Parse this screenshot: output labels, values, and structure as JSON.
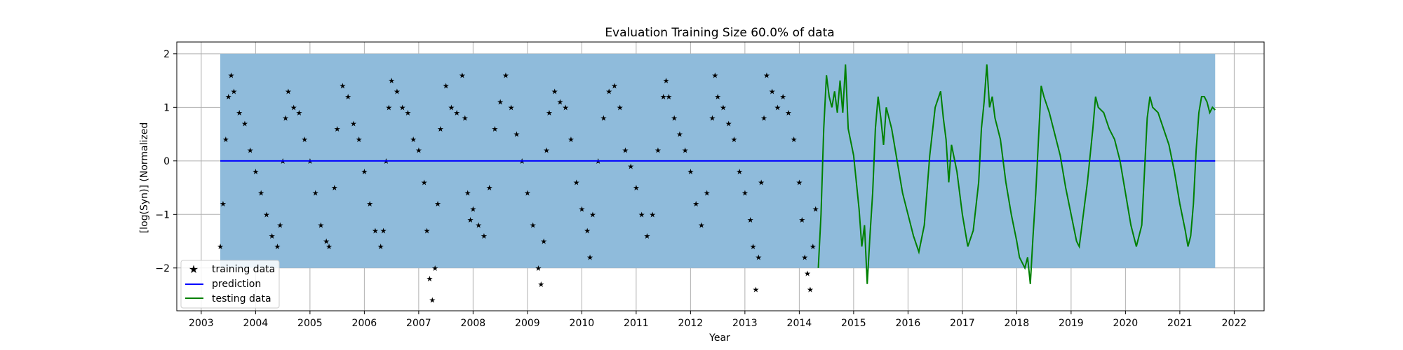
{
  "chart_data": {
    "type": "line",
    "title": "Evaluation Training Size 60.0% of data",
    "xlabel": "Year",
    "ylabel": "[log(Syn)] (Normalized",
    "xlim": [
      2002.55,
      2022.55
    ],
    "ylim": [
      -2.8,
      2.22
    ],
    "xticks": [
      2003,
      2004,
      2005,
      2006,
      2007,
      2008,
      2009,
      2010,
      2011,
      2012,
      2013,
      2014,
      2015,
      2016,
      2017,
      2018,
      2019,
      2020,
      2021,
      2022
    ],
    "yticks": [
      -2,
      -1,
      0,
      1,
      2
    ],
    "grid": true,
    "legend_position": "lower-left",
    "band": {
      "x_start": 2003.35,
      "x_end": 2021.65,
      "y_low": -2.0,
      "y_high": 2.0,
      "color": "#8fbbdb"
    },
    "series": [
      {
        "name": "training data",
        "marker": "star",
        "color": "#000000",
        "points": [
          [
            2003.35,
            -1.6
          ],
          [
            2003.4,
            -0.8
          ],
          [
            2003.45,
            0.4
          ],
          [
            2003.5,
            1.2
          ],
          [
            2003.55,
            1.6
          ],
          [
            2003.6,
            1.3
          ],
          [
            2003.7,
            0.9
          ],
          [
            2003.8,
            0.7
          ],
          [
            2003.9,
            0.2
          ],
          [
            2004.0,
            -0.2
          ],
          [
            2004.1,
            -0.6
          ],
          [
            2004.2,
            -1.0
          ],
          [
            2004.3,
            -1.4
          ],
          [
            2004.4,
            -1.6
          ],
          [
            2004.45,
            -1.2
          ],
          [
            2004.5,
            0.0
          ],
          [
            2004.55,
            0.8
          ],
          [
            2004.6,
            1.3
          ],
          [
            2004.7,
            1.0
          ],
          [
            2004.8,
            0.9
          ],
          [
            2004.9,
            0.4
          ],
          [
            2005.0,
            0.0
          ],
          [
            2005.1,
            -0.6
          ],
          [
            2005.2,
            -1.2
          ],
          [
            2005.3,
            -1.5
          ],
          [
            2005.35,
            -1.6
          ],
          [
            2005.45,
            -0.5
          ],
          [
            2005.5,
            0.6
          ],
          [
            2005.6,
            1.4
          ],
          [
            2005.7,
            1.2
          ],
          [
            2005.8,
            0.7
          ],
          [
            2005.9,
            0.4
          ],
          [
            2006.0,
            -0.2
          ],
          [
            2006.1,
            -0.8
          ],
          [
            2006.2,
            -1.3
          ],
          [
            2006.3,
            -1.6
          ],
          [
            2006.35,
            -1.3
          ],
          [
            2006.4,
            0.0
          ],
          [
            2006.45,
            1.0
          ],
          [
            2006.5,
            1.5
          ],
          [
            2006.6,
            1.3
          ],
          [
            2006.7,
            1.0
          ],
          [
            2006.8,
            0.9
          ],
          [
            2006.9,
            0.4
          ],
          [
            2007.0,
            0.2
          ],
          [
            2007.1,
            -0.4
          ],
          [
            2007.15,
            -1.3
          ],
          [
            2007.2,
            -2.2
          ],
          [
            2007.25,
            -2.6
          ],
          [
            2007.3,
            -2.0
          ],
          [
            2007.35,
            -0.8
          ],
          [
            2007.4,
            0.6
          ],
          [
            2007.5,
            1.4
          ],
          [
            2007.6,
            1.0
          ],
          [
            2007.7,
            0.9
          ],
          [
            2007.8,
            1.6
          ],
          [
            2007.85,
            0.8
          ],
          [
            2007.9,
            -0.6
          ],
          [
            2007.95,
            -1.1
          ],
          [
            2008.0,
            -0.9
          ],
          [
            2008.1,
            -1.2
          ],
          [
            2008.2,
            -1.4
          ],
          [
            2008.3,
            -0.5
          ],
          [
            2008.4,
            0.6
          ],
          [
            2008.5,
            1.1
          ],
          [
            2008.6,
            1.6
          ],
          [
            2008.7,
            1.0
          ],
          [
            2008.8,
            0.5
          ],
          [
            2008.9,
            0.0
          ],
          [
            2009.0,
            -0.6
          ],
          [
            2009.1,
            -1.2
          ],
          [
            2009.2,
            -2.0
          ],
          [
            2009.25,
            -2.3
          ],
          [
            2009.3,
            -1.5
          ],
          [
            2009.35,
            0.2
          ],
          [
            2009.4,
            0.9
          ],
          [
            2009.5,
            1.3
          ],
          [
            2009.6,
            1.1
          ],
          [
            2009.7,
            1.0
          ],
          [
            2009.8,
            0.4
          ],
          [
            2009.9,
            -0.4
          ],
          [
            2010.0,
            -0.9
          ],
          [
            2010.1,
            -1.3
          ],
          [
            2010.15,
            -1.8
          ],
          [
            2010.2,
            -1.0
          ],
          [
            2010.3,
            0.0
          ],
          [
            2010.4,
            0.8
          ],
          [
            2010.5,
            1.3
          ],
          [
            2010.6,
            1.4
          ],
          [
            2010.7,
            1.0
          ],
          [
            2010.8,
            0.2
          ],
          [
            2010.9,
            -0.1
          ],
          [
            2011.0,
            -0.5
          ],
          [
            2011.1,
            -1.0
          ],
          [
            2011.2,
            -1.4
          ],
          [
            2011.3,
            -1.0
          ],
          [
            2011.4,
            0.2
          ],
          [
            2011.5,
            1.2
          ],
          [
            2011.55,
            1.5
          ],
          [
            2011.6,
            1.2
          ],
          [
            2011.7,
            0.8
          ],
          [
            2011.8,
            0.5
          ],
          [
            2011.9,
            0.2
          ],
          [
            2012.0,
            -0.2
          ],
          [
            2012.1,
            -0.8
          ],
          [
            2012.2,
            -1.2
          ],
          [
            2012.3,
            -0.6
          ],
          [
            2012.4,
            0.8
          ],
          [
            2012.45,
            1.6
          ],
          [
            2012.5,
            1.2
          ],
          [
            2012.6,
            1.0
          ],
          [
            2012.7,
            0.7
          ],
          [
            2012.8,
            0.4
          ],
          [
            2012.9,
            -0.2
          ],
          [
            2013.0,
            -0.6
          ],
          [
            2013.1,
            -1.1
          ],
          [
            2013.15,
            -1.6
          ],
          [
            2013.2,
            -2.4
          ],
          [
            2013.25,
            -1.8
          ],
          [
            2013.3,
            -0.4
          ],
          [
            2013.35,
            0.8
          ],
          [
            2013.4,
            1.6
          ],
          [
            2013.5,
            1.3
          ],
          [
            2013.6,
            1.0
          ],
          [
            2013.7,
            1.2
          ],
          [
            2013.8,
            0.9
          ],
          [
            2013.9,
            0.4
          ],
          [
            2014.0,
            -0.4
          ],
          [
            2014.05,
            -1.1
          ],
          [
            2014.1,
            -1.8
          ],
          [
            2014.15,
            -2.1
          ],
          [
            2014.2,
            -2.4
          ],
          [
            2014.25,
            -1.6
          ],
          [
            2014.3,
            -0.9
          ]
        ]
      },
      {
        "name": "prediction",
        "color": "#0000ff",
        "points": [
          [
            2003.35,
            0.0
          ],
          [
            2021.65,
            0.0
          ]
        ]
      },
      {
        "name": "testing data",
        "color": "#008000",
        "points": [
          [
            2014.35,
            -2.0
          ],
          [
            2014.4,
            -1.0
          ],
          [
            2014.45,
            0.6
          ],
          [
            2014.5,
            1.6
          ],
          [
            2014.55,
            1.2
          ],
          [
            2014.6,
            1.0
          ],
          [
            2014.65,
            1.3
          ],
          [
            2014.7,
            0.9
          ],
          [
            2014.75,
            1.5
          ],
          [
            2014.8,
            0.9
          ],
          [
            2014.85,
            1.8
          ],
          [
            2014.9,
            0.6
          ],
          [
            2015.0,
            0.1
          ],
          [
            2015.1,
            -0.9
          ],
          [
            2015.15,
            -1.6
          ],
          [
            2015.2,
            -1.2
          ],
          [
            2015.25,
            -2.3
          ],
          [
            2015.3,
            -1.4
          ],
          [
            2015.35,
            -0.6
          ],
          [
            2015.4,
            0.6
          ],
          [
            2015.45,
            1.2
          ],
          [
            2015.5,
            0.8
          ],
          [
            2015.55,
            0.3
          ],
          [
            2015.6,
            1.0
          ],
          [
            2015.7,
            0.6
          ],
          [
            2015.8,
            0.0
          ],
          [
            2015.9,
            -0.6
          ],
          [
            2016.0,
            -1.0
          ],
          [
            2016.1,
            -1.4
          ],
          [
            2016.2,
            -1.7
          ],
          [
            2016.3,
            -1.2
          ],
          [
            2016.4,
            0.1
          ],
          [
            2016.5,
            1.0
          ],
          [
            2016.6,
            1.3
          ],
          [
            2016.65,
            0.8
          ],
          [
            2016.7,
            0.4
          ],
          [
            2016.75,
            -0.4
          ],
          [
            2016.8,
            0.3
          ],
          [
            2016.9,
            -0.2
          ],
          [
            2017.0,
            -1.0
          ],
          [
            2017.1,
            -1.6
          ],
          [
            2017.2,
            -1.3
          ],
          [
            2017.3,
            -0.4
          ],
          [
            2017.35,
            0.6
          ],
          [
            2017.4,
            1.1
          ],
          [
            2017.45,
            1.8
          ],
          [
            2017.5,
            1.0
          ],
          [
            2017.55,
            1.2
          ],
          [
            2017.6,
            0.8
          ],
          [
            2017.7,
            0.4
          ],
          [
            2017.8,
            -0.4
          ],
          [
            2017.9,
            -1.0
          ],
          [
            2018.0,
            -1.5
          ],
          [
            2018.05,
            -1.8
          ],
          [
            2018.1,
            -1.9
          ],
          [
            2018.15,
            -2.0
          ],
          [
            2018.2,
            -1.8
          ],
          [
            2018.25,
            -2.3
          ],
          [
            2018.3,
            -1.4
          ],
          [
            2018.35,
            -0.6
          ],
          [
            2018.4,
            0.4
          ],
          [
            2018.45,
            1.4
          ],
          [
            2018.5,
            1.2
          ],
          [
            2018.6,
            0.9
          ],
          [
            2018.7,
            0.5
          ],
          [
            2018.8,
            0.1
          ],
          [
            2018.9,
            -0.5
          ],
          [
            2019.0,
            -1.0
          ],
          [
            2019.1,
            -1.5
          ],
          [
            2019.15,
            -1.6
          ],
          [
            2019.2,
            -1.2
          ],
          [
            2019.3,
            -0.4
          ],
          [
            2019.4,
            0.6
          ],
          [
            2019.45,
            1.2
          ],
          [
            2019.5,
            1.0
          ],
          [
            2019.6,
            0.9
          ],
          [
            2019.7,
            0.6
          ],
          [
            2019.8,
            0.4
          ],
          [
            2019.9,
            0.0
          ],
          [
            2020.0,
            -0.6
          ],
          [
            2020.1,
            -1.2
          ],
          [
            2020.2,
            -1.6
          ],
          [
            2020.3,
            -1.2
          ],
          [
            2020.35,
            -0.2
          ],
          [
            2020.4,
            0.8
          ],
          [
            2020.45,
            1.2
          ],
          [
            2020.5,
            1.0
          ],
          [
            2020.6,
            0.9
          ],
          [
            2020.7,
            0.6
          ],
          [
            2020.8,
            0.3
          ],
          [
            2020.9,
            -0.2
          ],
          [
            2021.0,
            -0.8
          ],
          [
            2021.1,
            -1.3
          ],
          [
            2021.15,
            -1.6
          ],
          [
            2021.2,
            -1.4
          ],
          [
            2021.25,
            -0.8
          ],
          [
            2021.3,
            0.2
          ],
          [
            2021.35,
            0.9
          ],
          [
            2021.4,
            1.2
          ],
          [
            2021.45,
            1.2
          ],
          [
            2021.5,
            1.1
          ],
          [
            2021.55,
            0.9
          ],
          [
            2021.6,
            1.0
          ],
          [
            2021.65,
            0.95
          ]
        ]
      }
    ]
  }
}
